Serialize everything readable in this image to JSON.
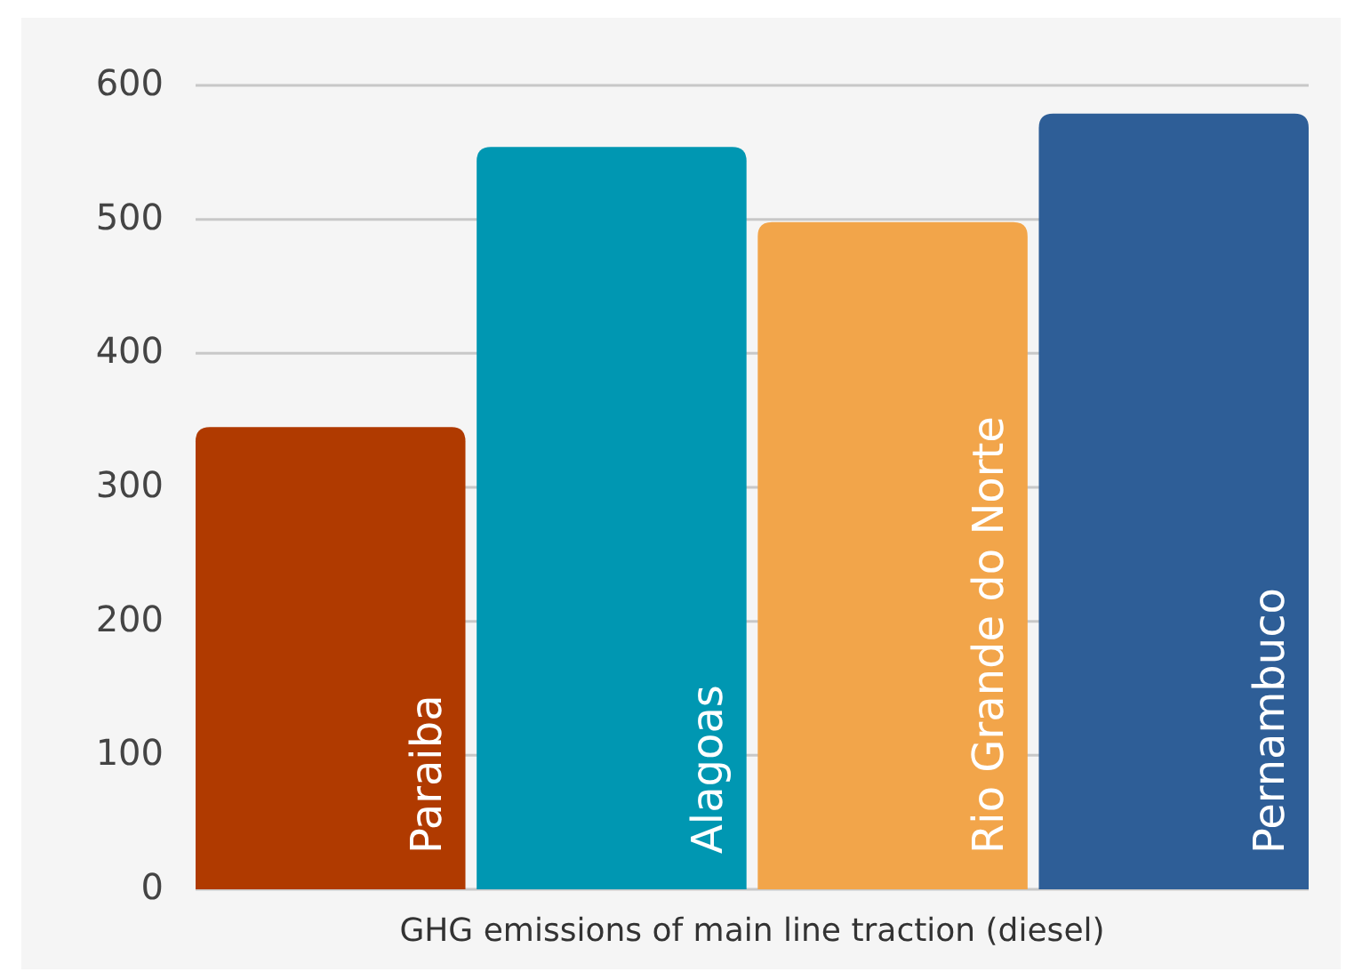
{
  "chart_data": {
    "type": "bar",
    "xlabel": "GHG emissions of main line traction (diesel)",
    "categories": [
      "Paraiba",
      "Alagoas",
      "Rio Grande do Norte",
      "Pernambuco"
    ],
    "values": [
      345,
      554,
      498,
      579
    ],
    "colors": [
      "#b03a00",
      "#0097b2",
      "#f2a54a",
      "#2e5e97"
    ],
    "ylim": [
      0,
      600
    ],
    "yticks": [
      0,
      100,
      200,
      300,
      400,
      500,
      600
    ],
    "grid": "y"
  }
}
